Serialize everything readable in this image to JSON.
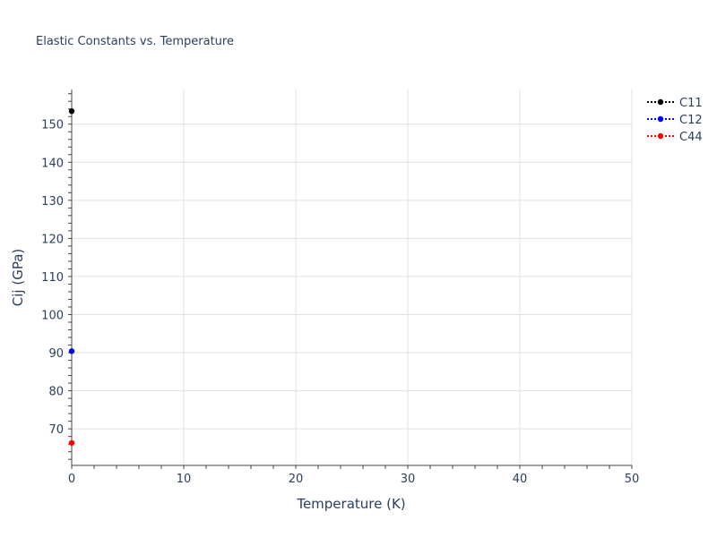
{
  "chart_data": {
    "type": "line",
    "title": "Elastic Constants vs. Temperature",
    "xlabel": "Temperature (K)",
    "ylabel": "Cij (GPa)",
    "xlim": [
      0,
      50
    ],
    "ylim": [
      60.4,
      159.1
    ],
    "xticks": [
      0,
      10,
      20,
      30,
      40,
      50
    ],
    "yticks": [
      70,
      80,
      90,
      100,
      110,
      120,
      130,
      140,
      150
    ],
    "grid": true,
    "legend_position": "top-right",
    "series": [
      {
        "name": "C11",
        "color": "#000000",
        "line": "dotted",
        "x": [
          0
        ],
        "y": [
          153.4
        ]
      },
      {
        "name": "C12",
        "color": "#0000ff",
        "line": "dotted",
        "x": [
          0
        ],
        "y": [
          90.4
        ]
      },
      {
        "name": "C44",
        "color": "#ff0000",
        "line": "dotted",
        "x": [
          0
        ],
        "y": [
          66.3
        ]
      }
    ]
  }
}
